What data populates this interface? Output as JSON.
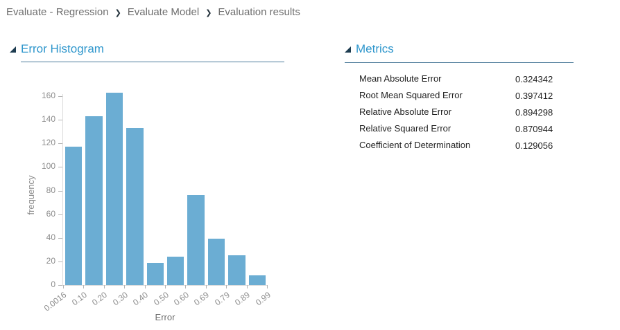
{
  "breadcrumb": {
    "items": [
      "Evaluate - Regression",
      "Evaluate Model",
      "Evaluation results"
    ],
    "separator": "❯"
  },
  "sections": {
    "histogram_title": "Error Histogram",
    "metrics_title": "Metrics"
  },
  "metrics": {
    "rows": [
      {
        "label": "Mean Absolute Error",
        "value": "0.324342"
      },
      {
        "label": "Root Mean Squared Error",
        "value": "0.397412"
      },
      {
        "label": "Relative Absolute Error",
        "value": "0.894298"
      },
      {
        "label": "Relative Squared Error",
        "value": "0.870944"
      },
      {
        "label": "Coefficient of Determination",
        "value": "0.129056"
      }
    ]
  },
  "chart_data": {
    "type": "bar",
    "title": "Error Histogram",
    "xlabel": "Error",
    "ylabel": "frequency",
    "bin_edges": [
      "0.0016",
      "0.10",
      "0.20",
      "0.30",
      "0.40",
      "0.50",
      "0.60",
      "0.69",
      "0.79",
      "0.89",
      "0.99"
    ],
    "values": [
      117,
      143,
      163,
      133,
      19,
      24,
      76,
      39,
      25,
      8
    ],
    "ylim": [
      0,
      160
    ],
    "ytick_step": 20,
    "grid": false,
    "legend": "none",
    "bar_color": "#6badd3",
    "accent_color": "#2e96cc"
  }
}
